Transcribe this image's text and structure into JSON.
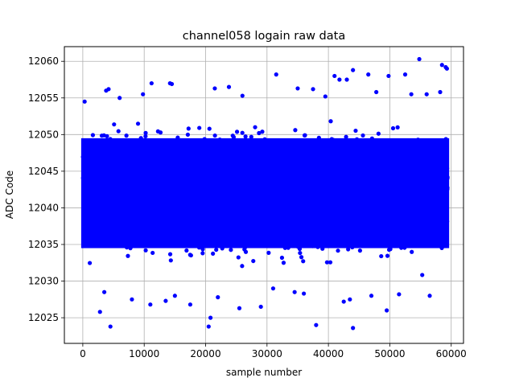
{
  "chart_data": {
    "type": "scatter",
    "title": "channel058 logain raw data",
    "xlabel": "sample number",
    "ylabel": "ADC Code",
    "xlim": [
      -3000,
      62000
    ],
    "ylim": [
      12021.5,
      12062
    ],
    "xticks": [
      0,
      10000,
      20000,
      30000,
      40000,
      50000,
      60000
    ],
    "yticks": [
      12025,
      12030,
      12035,
      12040,
      12045,
      12050,
      12055,
      12060
    ],
    "grid": true,
    "series": [
      {
        "color": "#0000ff",
        "marker": "circle",
        "n_samples": 60000,
        "x_range": [
          0,
          59400
        ],
        "center": 12042,
        "dense_range": [
          12033,
          12051
        ],
        "outliers": [
          [
            4500,
            12023.8
          ],
          [
            2800,
            12025.8
          ],
          [
            20500,
            12023.8
          ],
          [
            20800,
            12025.0
          ],
          [
            38000,
            12024.0
          ],
          [
            44000,
            12023.6
          ],
          [
            49500,
            12026.0
          ],
          [
            25500,
            12026.3
          ],
          [
            29000,
            12026.5
          ],
          [
            17500,
            12026.8
          ],
          [
            11000,
            12026.8
          ],
          [
            13500,
            12027.3
          ],
          [
            15000,
            12028.0
          ],
          [
            8000,
            12027.5
          ],
          [
            42500,
            12027.2
          ],
          [
            43500,
            12027.5
          ],
          [
            56500,
            12028.0
          ],
          [
            3500,
            12028.5
          ],
          [
            34500,
            12028.5
          ],
          [
            36000,
            12028.3
          ],
          [
            47000,
            12028.0
          ],
          [
            51500,
            12028.2
          ],
          [
            22000,
            12027.8
          ],
          [
            31000,
            12029.0
          ],
          [
            54800,
            12060.3
          ],
          [
            58500,
            12059.5
          ],
          [
            59300,
            12059.0
          ],
          [
            59100,
            12059.2
          ],
          [
            44000,
            12058.8
          ],
          [
            41000,
            12058.0
          ],
          [
            46500,
            12058.2
          ],
          [
            49800,
            12058.0
          ],
          [
            52500,
            12058.2
          ],
          [
            31500,
            12058.2
          ],
          [
            11200,
            12057.0
          ],
          [
            14500,
            12056.9
          ],
          [
            14200,
            12057.0
          ],
          [
            23800,
            12056.5
          ],
          [
            21500,
            12056.3
          ],
          [
            37500,
            12056.2
          ],
          [
            35000,
            12056.3
          ],
          [
            43000,
            12057.5
          ],
          [
            41800,
            12057.5
          ],
          [
            4200,
            12056.2
          ],
          [
            3800,
            12056.0
          ],
          [
            9800,
            12055.5
          ],
          [
            56000,
            12055.5
          ],
          [
            58200,
            12055.8
          ],
          [
            300,
            12054.5
          ],
          [
            6000,
            12055.0
          ],
          [
            26000,
            12055.3
          ],
          [
            39500,
            12055.2
          ],
          [
            47800,
            12055.8
          ],
          [
            53500,
            12055.5
          ]
        ]
      }
    ]
  }
}
